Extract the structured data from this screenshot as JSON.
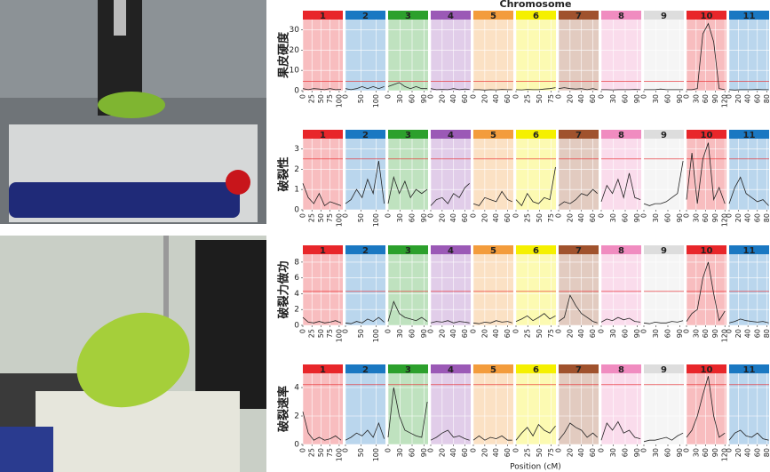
{
  "figure": {
    "title": "Chromosome",
    "x_label": "Position (cM)"
  },
  "chromosomes": [
    {
      "name": "1",
      "color": "#e8262a",
      "xlim": [
        0,
        110
      ],
      "xticks": [
        0,
        25,
        50,
        75,
        100
      ],
      "x": [
        0,
        15,
        30,
        45,
        60,
        75,
        90,
        105
      ]
    },
    {
      "name": "2",
      "color": "#1a78c2",
      "xlim": [
        0,
        130
      ],
      "xticks": [
        0,
        50,
        100
      ],
      "x": [
        0,
        18,
        36,
        54,
        72,
        90,
        108,
        126
      ]
    },
    {
      "name": "3",
      "color": "#2ca02c",
      "xlim": [
        0,
        100
      ],
      "xticks": [
        0,
        30,
        60,
        90
      ],
      "x": [
        0,
        14,
        28,
        42,
        56,
        70,
        84,
        98
      ]
    },
    {
      "name": "4",
      "color": "#9b59b6",
      "xlim": [
        0,
        70
      ],
      "xticks": [
        0,
        20,
        40,
        60
      ],
      "x": [
        0,
        10,
        20,
        30,
        40,
        50,
        60,
        68
      ]
    },
    {
      "name": "5",
      "color": "#f39c3c",
      "xlim": [
        0,
        70
      ],
      "xticks": [
        0,
        20,
        40,
        60
      ],
      "x": [
        0,
        10,
        20,
        30,
        40,
        50,
        60,
        68
      ]
    },
    {
      "name": "6",
      "color": "#f5f000",
      "xlim": [
        0,
        85
      ],
      "xticks": [
        0,
        25,
        50,
        75
      ],
      "x": [
        0,
        12,
        24,
        36,
        48,
        60,
        72,
        84
      ]
    },
    {
      "name": "7",
      "color": "#a0522d",
      "xlim": [
        0,
        70
      ],
      "xticks": [
        0,
        20,
        40,
        60
      ],
      "x": [
        0,
        10,
        20,
        30,
        40,
        50,
        60,
        68
      ]
    },
    {
      "name": "8",
      "color": "#f08cc0",
      "xlim": [
        0,
        100
      ],
      "xticks": [
        0,
        30,
        60,
        90
      ],
      "x": [
        0,
        14,
        28,
        42,
        56,
        70,
        84,
        98
      ]
    },
    {
      "name": "9",
      "color": "#dddddd",
      "xlim": [
        0,
        100
      ],
      "xticks": [
        0,
        30,
        60,
        90
      ],
      "x": [
        0,
        14,
        28,
        42,
        56,
        70,
        84,
        98
      ]
    },
    {
      "name": "10",
      "color": "#e8262a",
      "xlim": [
        0,
        125
      ],
      "xticks": [
        0,
        30,
        60,
        90,
        120
      ],
      "x": [
        0,
        17,
        34,
        51,
        68,
        85,
        102,
        120
      ]
    },
    {
      "name": "11",
      "color": "#1a78c2",
      "xlim": [
        0,
        85
      ],
      "xticks": [
        0,
        20,
        40,
        60,
        80
      ],
      "x": [
        0,
        12,
        24,
        36,
        48,
        60,
        72,
        84
      ]
    }
  ],
  "chart_data": [
    {
      "type": "line",
      "y_label": "果皮硬度",
      "ylim": [
        0,
        35
      ],
      "yticks": [
        0,
        10,
        20,
        30
      ],
      "threshold": 4.5,
      "grid": true,
      "line_color": "#222222",
      "threshold_color": "#e8262a",
      "panels": [
        {
          "values": [
            1,
            0.5,
            1,
            0.8,
            0.5,
            1,
            0.5,
            0.6
          ]
        },
        {
          "values": [
            1,
            0.5,
            1,
            2,
            1,
            2,
            1,
            2
          ]
        },
        {
          "values": [
            2,
            3,
            4,
            2,
            1,
            2,
            1,
            1
          ]
        },
        {
          "values": [
            1,
            0.5,
            0.6,
            0.5,
            1,
            0.5,
            0.8,
            0.6
          ]
        },
        {
          "values": [
            0.5,
            0.5,
            0.3,
            0.5,
            0.4,
            0.6,
            0.5,
            0.5
          ]
        },
        {
          "values": [
            0.5,
            0.4,
            0.6,
            0.5,
            0.5,
            0.8,
            1,
            1.5
          ]
        },
        {
          "values": [
            1,
            1.5,
            1,
            0.8,
            1,
            0.5,
            1,
            0.5
          ]
        },
        {
          "values": [
            0.5,
            0.5,
            0.4,
            0.5,
            0.5,
            0.5,
            0.6,
            0.5
          ]
        },
        {
          "values": [
            0.5,
            0.5,
            0.5,
            0.8,
            0.5,
            0.5,
            0.5,
            0.5
          ]
        },
        {
          "values": [
            0.5,
            0.5,
            1,
            28,
            33,
            24,
            1,
            0.5
          ]
        },
        {
          "values": [
            0.5,
            0.3,
            0.5,
            0.5,
            0.5,
            0.6,
            0.5,
            0.5
          ]
        }
      ]
    },
    {
      "type": "line",
      "y_label": "破裂性",
      "ylim": [
        0,
        3.5
      ],
      "yticks": [
        0,
        1,
        2,
        3
      ],
      "threshold": 2.5,
      "grid": true,
      "line_color": "#222222",
      "threshold_color": "#e8262a",
      "panels": [
        {
          "values": [
            1.3,
            0.6,
            0.3,
            0.8,
            0.2,
            0.4,
            0.3,
            0.2
          ]
        },
        {
          "values": [
            0.3,
            0.5,
            1,
            0.6,
            1.5,
            0.8,
            2.4,
            0.3
          ]
        },
        {
          "values": [
            0.3,
            1.6,
            0.8,
            1.4,
            0.6,
            1,
            0.8,
            1
          ]
        },
        {
          "values": [
            0.2,
            0.5,
            0.6,
            0.3,
            0.8,
            0.6,
            1.1,
            1.3
          ]
        },
        {
          "values": [
            0.3,
            0.2,
            0.6,
            0.5,
            0.4,
            0.9,
            0.5,
            0.4
          ]
        },
        {
          "values": [
            0.5,
            0.2,
            0.8,
            0.4,
            0.3,
            0.6,
            0.5,
            2.1
          ]
        },
        {
          "values": [
            0.2,
            0.4,
            0.3,
            0.5,
            0.8,
            0.7,
            1,
            0.8
          ]
        },
        {
          "values": [
            0.4,
            1.2,
            0.8,
            1.5,
            0.6,
            1.8,
            0.6,
            0.5
          ]
        },
        {
          "values": [
            0.3,
            0.2,
            0.3,
            0.3,
            0.4,
            0.6,
            0.8,
            2.4
          ]
        },
        {
          "values": [
            0.5,
            2.8,
            0.3,
            2.5,
            3.3,
            0.5,
            1.1,
            0.3
          ]
        },
        {
          "values": [
            0.3,
            1.1,
            1.6,
            0.8,
            0.6,
            0.4,
            0.5,
            0.2
          ]
        }
      ]
    },
    {
      "type": "line",
      "y_label": "破裂力做功",
      "ylim": [
        0,
        9
      ],
      "yticks": [
        0,
        2,
        4,
        6,
        8
      ],
      "threshold": 4.3,
      "grid": true,
      "line_color": "#222222",
      "threshold_color": "#e8262a",
      "panels": [
        {
          "values": [
            1,
            0.4,
            0.3,
            0.5,
            0.3,
            0.4,
            0.6,
            0.3
          ]
        },
        {
          "values": [
            0.3,
            0.2,
            0.5,
            0.3,
            0.8,
            0.5,
            1,
            0.4
          ]
        },
        {
          "values": [
            0.5,
            3,
            1.5,
            1,
            0.8,
            0.6,
            1,
            0.5
          ]
        },
        {
          "values": [
            0.3,
            0.5,
            0.4,
            0.6,
            0.3,
            0.5,
            0.4,
            0.3
          ]
        },
        {
          "values": [
            0.3,
            0.2,
            0.4,
            0.3,
            0.6,
            0.4,
            0.5,
            0.3
          ]
        },
        {
          "values": [
            0.5,
            0.8,
            1.2,
            0.6,
            1,
            1.5,
            0.8,
            1.2
          ]
        },
        {
          "values": [
            0.5,
            1,
            3.8,
            2.5,
            1.5,
            1,
            0.5,
            0.3
          ]
        },
        {
          "values": [
            0.4,
            0.8,
            0.6,
            1,
            0.7,
            0.9,
            0.5,
            0.4
          ]
        },
        {
          "values": [
            0.3,
            0.2,
            0.4,
            0.3,
            0.3,
            0.5,
            0.4,
            0.6
          ]
        },
        {
          "values": [
            0.5,
            1.5,
            2,
            6,
            8,
            4,
            0.6,
            1.8
          ]
        },
        {
          "values": [
            0.3,
            0.5,
            0.8,
            0.6,
            0.5,
            0.4,
            0.5,
            0.3
          ]
        }
      ]
    },
    {
      "type": "line",
      "y_label": "破裂速率",
      "ylim": [
        0,
        5
      ],
      "yticks": [
        0,
        2,
        4
      ],
      "threshold": 4.2,
      "grid": true,
      "line_color": "#222222",
      "threshold_color": "#e8262a",
      "panels": [
        {
          "values": [
            2.3,
            0.8,
            0.3,
            0.5,
            0.3,
            0.4,
            0.6,
            0.3
          ]
        },
        {
          "values": [
            0.3,
            0.5,
            0.8,
            0.6,
            1,
            0.5,
            1.5,
            0.4
          ]
        },
        {
          "values": [
            0.5,
            4,
            2,
            1,
            0.8,
            0.6,
            0.5,
            3
          ]
        },
        {
          "values": [
            0.3,
            0.5,
            0.8,
            1,
            0.5,
            0.6,
            0.4,
            0.3
          ]
        },
        {
          "values": [
            0.3,
            0.6,
            0.3,
            0.5,
            0.4,
            0.6,
            0.3,
            0.3
          ]
        },
        {
          "values": [
            0.3,
            0.8,
            1.2,
            0.6,
            1.4,
            1,
            0.8,
            1.3
          ]
        },
        {
          "values": [
            0.3,
            0.8,
            1.5,
            1.2,
            1,
            0.5,
            0.8,
            0.5
          ]
        },
        {
          "values": [
            0.3,
            1.5,
            1,
            1.6,
            0.8,
            1,
            0.5,
            0.4
          ]
        },
        {
          "values": [
            0.2,
            0.3,
            0.3,
            0.4,
            0.5,
            0.3,
            0.6,
            0.8
          ]
        },
        {
          "values": [
            0.5,
            1,
            2,
            3.5,
            4.8,
            2,
            0.5,
            0.8
          ]
        },
        {
          "values": [
            0.3,
            0.8,
            1,
            0.6,
            0.5,
            0.8,
            0.4,
            0.3
          ]
        }
      ]
    }
  ]
}
